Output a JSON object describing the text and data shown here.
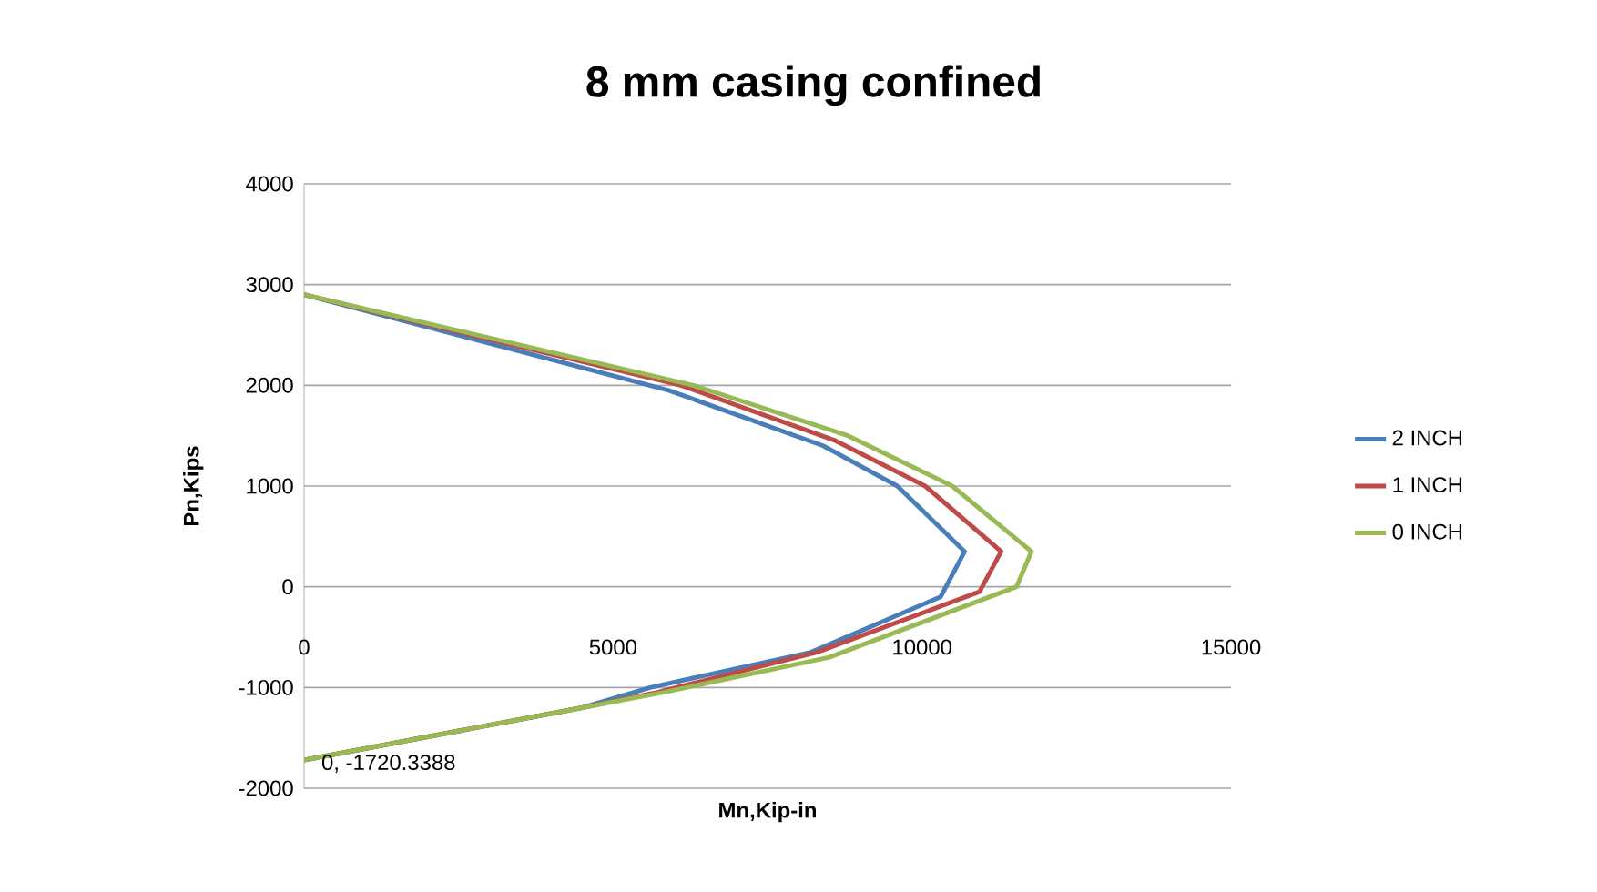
{
  "chart_data": {
    "type": "line",
    "title": "8 mm casing confined",
    "xlabel": "Mn,Kip-in",
    "ylabel": "Pn,Kips",
    "series": [
      {
        "name": "2 INCH",
        "color": "#4a7ebb",
        "x": [
          0,
          5900,
          8400,
          9600,
          10690,
          10300,
          8200,
          5600,
          4500,
          0
        ],
        "values": [
          2900,
          1950,
          1400,
          1000,
          350,
          -100,
          -650,
          -1000,
          -1200,
          -1720.3388
        ]
      },
      {
        "name": "1 INCH",
        "color": "#be4b48",
        "x": [
          0,
          6100,
          8600,
          10050,
          11280,
          10930,
          8300,
          5700,
          4500,
          0
        ],
        "values": [
          2900,
          2000,
          1450,
          1000,
          350,
          -50,
          -650,
          -1050,
          -1200,
          -1720.3388
        ]
      },
      {
        "name": "0 INCH",
        "color": "#98b954",
        "x": [
          0,
          6300,
          8800,
          10490,
          11770,
          11530,
          8500,
          5800,
          4500,
          0
        ],
        "values": [
          2900,
          2000,
          1500,
          1000,
          350,
          0,
          -700,
          -1050,
          -1200,
          -1720.3388
        ]
      }
    ],
    "xlim": [
      0,
      15000
    ],
    "ylim": [
      -2000,
      4000
    ],
    "xticks": [
      0,
      5000,
      10000,
      15000
    ],
    "yticks": [
      -2000,
      -1000,
      0,
      1000,
      2000,
      3000,
      4000
    ],
    "grid": "y",
    "legend": "right",
    "annotations": [
      {
        "text": "0, -1720.3388",
        "x": 0,
        "y": -1720.3388
      }
    ]
  }
}
